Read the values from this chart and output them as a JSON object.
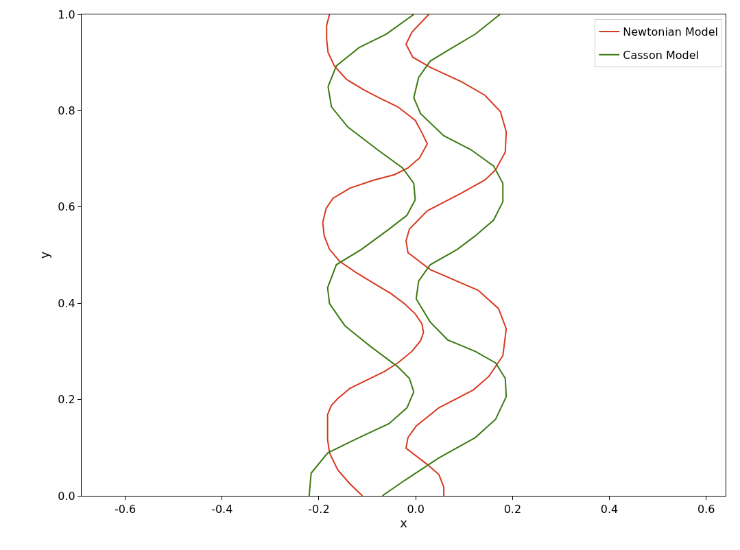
{
  "chart_data": {
    "type": "line",
    "xlabel": "x",
    "ylabel": "y",
    "xlim": [
      -0.69,
      0.64
    ],
    "ylim": [
      0,
      1.0
    ],
    "xticks": [
      -0.6,
      -0.4,
      -0.2,
      {
        "value": 0,
        "label": "0.0"
      },
      0.2,
      0.4,
      0.6
    ],
    "yticks": [
      {
        "value": 0,
        "label": "0.0"
      },
      0.2,
      0.4,
      0.6,
      0.8,
      {
        "value": 1,
        "label": "1.0"
      }
    ],
    "legend": "top right",
    "marker": "none",
    "line_style": "solid",
    "series": [
      {
        "name": "Newtonian Model",
        "color": "#d7391f",
        "x": [
          -0.11,
          -0.136,
          -0.161,
          -0.178,
          -0.182,
          -0.182,
          -0.182,
          -0.174,
          -0.161,
          -0.136,
          -0.1,
          -0.065,
          -0.037,
          -0.008,
          0.01,
          0.016,
          0.013,
          -0.001,
          -0.023,
          -0.051,
          -0.086,
          -0.122,
          -0.157,
          -0.178,
          -0.189,
          -0.192,
          -0.185,
          -0.171,
          -0.136,
          -0.086,
          -0.044,
          -0.016,
          0.008,
          0.024,
          0.014,
          -0.001,
          -0.037,
          -0.072,
          -0.107,
          -0.143,
          -0.168,
          -0.181,
          -0.184,
          -0.184,
          -0.178
        ],
        "values": [
          0,
          0.025,
          0.054,
          0.089,
          0.117,
          0.145,
          0.169,
          0.188,
          0.202,
          0.223,
          0.241,
          0.258,
          0.276,
          0.3,
          0.322,
          0.339,
          0.357,
          0.378,
          0.399,
          0.42,
          0.441,
          0.463,
          0.487,
          0.512,
          0.54,
          0.568,
          0.597,
          0.618,
          0.639,
          0.656,
          0.667,
          0.681,
          0.702,
          0.731,
          0.752,
          0.78,
          0.808,
          0.825,
          0.843,
          0.865,
          0.893,
          0.921,
          0.949,
          0.977,
          1.0
        ]
      },
      {
        "color": "#d7391f",
        "x": [
          0.058,
          0.058,
          0.048,
          0.024,
          -0.02,
          -0.016,
          0.001,
          0.048,
          0.119,
          0.151,
          0.18,
          0.187,
          0.171,
          0.129,
          0.03,
          -0.016,
          -0.02,
          -0.013,
          0.024,
          0.095,
          0.143,
          0.165,
          0.185,
          0.187,
          0.175,
          0.143,
          0.095,
          0.03,
          -0.006,
          -0.02,
          -0.008,
          0.027
        ],
        "values": [
          0,
          0.018,
          0.044,
          0.065,
          0.099,
          0.121,
          0.145,
          0.183,
          0.22,
          0.248,
          0.291,
          0.347,
          0.389,
          0.427,
          0.47,
          0.505,
          0.53,
          0.554,
          0.592,
          0.629,
          0.656,
          0.677,
          0.714,
          0.756,
          0.798,
          0.832,
          0.86,
          0.89,
          0.911,
          0.938,
          0.963,
          1.0
        ]
      },
      {
        "name": "Casson Model",
        "color": "#3b7a12",
        "x": [
          -0.22,
          -0.216,
          -0.182,
          -0.117,
          -0.055,
          -0.018,
          -0.004,
          -0.013,
          -0.037,
          -0.093,
          -0.146,
          -0.178,
          -0.182,
          -0.164,
          -0.112,
          -0.055,
          -0.018,
          -0.001,
          -0.004,
          -0.027,
          -0.079,
          -0.14,
          -0.174,
          -0.181,
          -0.164,
          -0.117,
          -0.061,
          -0.004
        ],
        "values": [
          0,
          0.047,
          0.089,
          0.121,
          0.15,
          0.183,
          0.216,
          0.244,
          0.268,
          0.31,
          0.353,
          0.399,
          0.432,
          0.48,
          0.512,
          0.554,
          0.583,
          0.615,
          0.649,
          0.681,
          0.719,
          0.766,
          0.808,
          0.85,
          0.893,
          0.931,
          0.959,
          1.0
        ]
      },
      {
        "color": "#3b7a12",
        "x": [
          -0.069,
          -0.023,
          0.048,
          0.123,
          0.165,
          0.187,
          0.185,
          0.165,
          0.123,
          0.066,
          0.03,
          0.001,
          0.006,
          0.03,
          0.086,
          0.123,
          0.161,
          0.18,
          0.18,
          0.161,
          0.114,
          0.058,
          0.01,
          -0.004,
          0.006,
          0.03,
          0.066,
          0.123,
          0.174
        ],
        "values": [
          0,
          0.032,
          0.079,
          0.121,
          0.159,
          0.206,
          0.244,
          0.276,
          0.3,
          0.324,
          0.361,
          0.409,
          0.446,
          0.48,
          0.512,
          0.54,
          0.573,
          0.611,
          0.649,
          0.685,
          0.719,
          0.748,
          0.794,
          0.827,
          0.869,
          0.903,
          0.925,
          0.959,
          1.0
        ]
      }
    ]
  }
}
